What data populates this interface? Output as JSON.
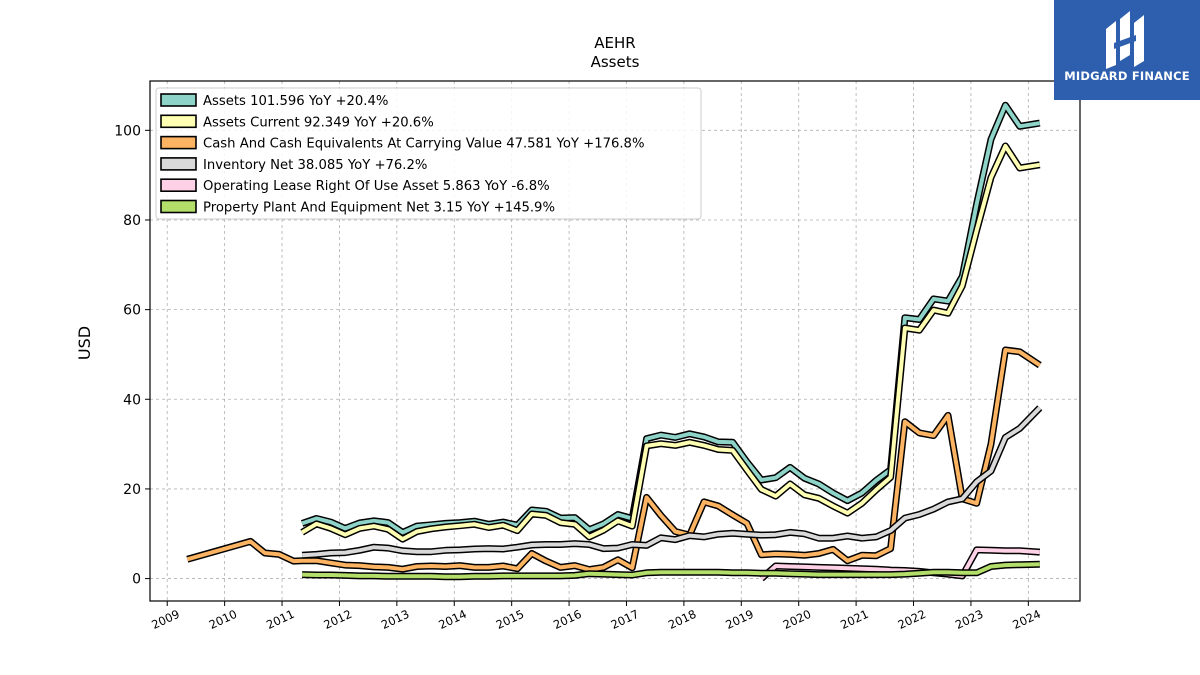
{
  "logo": {
    "text": "MIDGARD FINANCE"
  },
  "chart_data": {
    "type": "line",
    "title": "AEHR",
    "subtitle": "Assets",
    "ylabel": "USD",
    "xlabel": "",
    "ylim": [
      -5,
      111
    ],
    "xlim": [
      2008.7,
      2024.9
    ],
    "yticks": [
      0,
      20,
      40,
      60,
      80,
      100
    ],
    "xticks": [
      "2009",
      "2010",
      "2011",
      "2012",
      "2013",
      "2014",
      "2015",
      "2016",
      "2017",
      "2018",
      "2019",
      "2020",
      "2021",
      "2022",
      "2023",
      "2024"
    ],
    "grid": true,
    "legend_position": "top-left",
    "series": [
      {
        "name": "Assets  101.596 YoY +20.4%",
        "color": "#8dd3c7",
        "points": [
          [
            2011.35,
            12.3
          ],
          [
            2011.6,
            13.4
          ],
          [
            2011.85,
            12.6
          ],
          [
            2012.1,
            11.2
          ],
          [
            2012.35,
            12.4
          ],
          [
            2012.6,
            12.9
          ],
          [
            2012.85,
            12.5
          ],
          [
            2013.1,
            10.3
          ],
          [
            2013.35,
            11.7
          ],
          [
            2013.6,
            12.0
          ],
          [
            2013.85,
            12.3
          ],
          [
            2014.1,
            12.5
          ],
          [
            2014.35,
            12.8
          ],
          [
            2014.6,
            12.1
          ],
          [
            2014.85,
            12.6
          ],
          [
            2015.1,
            11.9
          ],
          [
            2015.35,
            15.3
          ],
          [
            2015.6,
            15.0
          ],
          [
            2015.85,
            13.5
          ],
          [
            2016.1,
            13.6
          ],
          [
            2016.35,
            10.9
          ],
          [
            2016.6,
            12.2
          ],
          [
            2016.85,
            14.3
          ],
          [
            2017.1,
            13.4
          ],
          [
            2017.35,
            31.2
          ],
          [
            2017.6,
            32.0
          ],
          [
            2017.85,
            31.5
          ],
          [
            2018.1,
            32.3
          ],
          [
            2018.35,
            31.6
          ],
          [
            2018.6,
            30.5
          ],
          [
            2018.85,
            30.4
          ],
          [
            2019.1,
            26.0
          ],
          [
            2019.35,
            22.0
          ],
          [
            2019.6,
            22.5
          ],
          [
            2019.85,
            24.8
          ],
          [
            2020.1,
            22.4
          ],
          [
            2020.35,
            21.1
          ],
          [
            2020.6,
            19.1
          ],
          [
            2020.85,
            17.4
          ],
          [
            2021.1,
            19.1
          ],
          [
            2021.35,
            21.9
          ],
          [
            2021.6,
            24.3
          ],
          [
            2021.85,
            58.2
          ],
          [
            2022.1,
            57.8
          ],
          [
            2022.35,
            62.4
          ],
          [
            2022.6,
            61.9
          ],
          [
            2022.85,
            67.4
          ],
          [
            2023.1,
            83.6
          ],
          [
            2023.35,
            98.0
          ],
          [
            2023.6,
            105.6
          ],
          [
            2023.85,
            100.9
          ],
          [
            2024.2,
            101.6
          ]
        ]
      },
      {
        "name": "Assets Current  92.349 YoY +20.6%",
        "color": "#ffffb3",
        "points": [
          [
            2011.35,
            10.3
          ],
          [
            2011.6,
            12.2
          ],
          [
            2011.85,
            11.2
          ],
          [
            2012.1,
            9.8
          ],
          [
            2012.35,
            11.2
          ],
          [
            2012.6,
            11.7
          ],
          [
            2012.85,
            11.0
          ],
          [
            2013.1,
            8.8
          ],
          [
            2013.35,
            10.5
          ],
          [
            2013.6,
            11.1
          ],
          [
            2013.85,
            11.5
          ],
          [
            2014.1,
            11.8
          ],
          [
            2014.35,
            12.1
          ],
          [
            2014.6,
            11.4
          ],
          [
            2014.85,
            11.9
          ],
          [
            2015.1,
            10.7
          ],
          [
            2015.35,
            14.4
          ],
          [
            2015.6,
            14.1
          ],
          [
            2015.85,
            12.5
          ],
          [
            2016.1,
            12.1
          ],
          [
            2016.35,
            9.3
          ],
          [
            2016.6,
            10.8
          ],
          [
            2016.85,
            12.9
          ],
          [
            2017.1,
            11.7
          ],
          [
            2017.35,
            29.6
          ],
          [
            2017.6,
            30.1
          ],
          [
            2017.85,
            29.7
          ],
          [
            2018.1,
            30.4
          ],
          [
            2018.35,
            29.7
          ],
          [
            2018.6,
            28.8
          ],
          [
            2018.85,
            28.6
          ],
          [
            2019.1,
            24.2
          ],
          [
            2019.35,
            19.9
          ],
          [
            2019.6,
            18.4
          ],
          [
            2019.85,
            21.1
          ],
          [
            2020.1,
            18.7
          ],
          [
            2020.35,
            17.9
          ],
          [
            2020.6,
            16.2
          ],
          [
            2020.85,
            14.6
          ],
          [
            2021.1,
            16.8
          ],
          [
            2021.35,
            19.8
          ],
          [
            2021.6,
            22.6
          ],
          [
            2021.85,
            55.9
          ],
          [
            2022.1,
            55.4
          ],
          [
            2022.35,
            59.9
          ],
          [
            2022.6,
            59.2
          ],
          [
            2022.85,
            65.3
          ],
          [
            2023.1,
            77.7
          ],
          [
            2023.35,
            89.5
          ],
          [
            2023.6,
            96.5
          ],
          [
            2023.85,
            91.6
          ],
          [
            2024.2,
            92.3
          ]
        ]
      },
      {
        "name": "Cash And Cash Equivalents At Carrying Value  47.581 YoY +176.8%",
        "color": "#fdb462",
        "points": [
          [
            2009.35,
            4.3
          ],
          [
            2010.45,
            8.3
          ],
          [
            2010.7,
            5.7
          ],
          [
            2010.95,
            5.4
          ],
          [
            2011.2,
            3.9
          ],
          [
            2011.35,
            4.0
          ],
          [
            2011.6,
            4.0
          ],
          [
            2011.85,
            3.5
          ],
          [
            2012.1,
            3.0
          ],
          [
            2012.35,
            2.9
          ],
          [
            2012.6,
            2.6
          ],
          [
            2012.85,
            2.5
          ],
          [
            2013.1,
            2.1
          ],
          [
            2013.35,
            2.7
          ],
          [
            2013.6,
            2.8
          ],
          [
            2013.85,
            2.7
          ],
          [
            2014.1,
            2.9
          ],
          [
            2014.35,
            2.5
          ],
          [
            2014.6,
            2.5
          ],
          [
            2014.85,
            2.8
          ],
          [
            2015.1,
            2.2
          ],
          [
            2015.35,
            5.6
          ],
          [
            2015.6,
            3.9
          ],
          [
            2015.85,
            2.5
          ],
          [
            2016.1,
            2.9
          ],
          [
            2016.35,
            2.0
          ],
          [
            2016.6,
            2.5
          ],
          [
            2016.85,
            4.2
          ],
          [
            2017.1,
            2.4
          ],
          [
            2017.35,
            18.1
          ],
          [
            2017.6,
            14.1
          ],
          [
            2017.85,
            10.5
          ],
          [
            2018.1,
            9.7
          ],
          [
            2018.35,
            17.1
          ],
          [
            2018.6,
            16.2
          ],
          [
            2018.85,
            14.2
          ],
          [
            2019.1,
            12.3
          ],
          [
            2019.35,
            5.3
          ],
          [
            2019.6,
            5.5
          ],
          [
            2019.85,
            5.4
          ],
          [
            2020.1,
            5.2
          ],
          [
            2020.35,
            5.6
          ],
          [
            2020.6,
            6.5
          ],
          [
            2020.85,
            4.0
          ],
          [
            2021.1,
            5.2
          ],
          [
            2021.35,
            5.1
          ],
          [
            2021.6,
            6.7
          ],
          [
            2021.85,
            35.0
          ],
          [
            2022.1,
            32.5
          ],
          [
            2022.35,
            31.9
          ],
          [
            2022.6,
            36.4
          ],
          [
            2022.85,
            17.8
          ],
          [
            2023.1,
            16.8
          ],
          [
            2023.35,
            30.0
          ],
          [
            2023.6,
            51.0
          ],
          [
            2023.85,
            50.6
          ],
          [
            2024.2,
            47.6
          ]
        ]
      },
      {
        "name": "Inventory Net  38.085 YoY +76.2%",
        "color": "#d9d9d9",
        "points": [
          [
            2011.35,
            5.2
          ],
          [
            2011.6,
            5.4
          ],
          [
            2011.85,
            5.7
          ],
          [
            2012.1,
            5.8
          ],
          [
            2012.35,
            6.3
          ],
          [
            2012.6,
            7.0
          ],
          [
            2012.85,
            6.8
          ],
          [
            2013.1,
            6.2
          ],
          [
            2013.35,
            6.0
          ],
          [
            2013.6,
            6.0
          ],
          [
            2013.85,
            6.3
          ],
          [
            2014.1,
            6.4
          ],
          [
            2014.35,
            6.6
          ],
          [
            2014.6,
            6.7
          ],
          [
            2014.85,
            6.6
          ],
          [
            2015.1,
            7.0
          ],
          [
            2015.35,
            7.5
          ],
          [
            2015.6,
            7.6
          ],
          [
            2015.85,
            7.6
          ],
          [
            2016.1,
            7.8
          ],
          [
            2016.35,
            7.6
          ],
          [
            2016.6,
            6.7
          ],
          [
            2016.85,
            6.8
          ],
          [
            2017.1,
            7.6
          ],
          [
            2017.35,
            7.4
          ],
          [
            2017.6,
            9.1
          ],
          [
            2017.85,
            8.7
          ],
          [
            2018.1,
            9.6
          ],
          [
            2018.35,
            9.3
          ],
          [
            2018.6,
            9.9
          ],
          [
            2018.85,
            10.1
          ],
          [
            2019.1,
            9.9
          ],
          [
            2019.35,
            9.7
          ],
          [
            2019.6,
            9.8
          ],
          [
            2019.85,
            10.3
          ],
          [
            2020.1,
            10.0
          ],
          [
            2020.35,
            9.0
          ],
          [
            2020.6,
            9.0
          ],
          [
            2020.85,
            9.5
          ],
          [
            2021.1,
            9.0
          ],
          [
            2021.35,
            9.3
          ],
          [
            2021.6,
            10.7
          ],
          [
            2021.85,
            13.5
          ],
          [
            2022.1,
            14.3
          ],
          [
            2022.35,
            15.5
          ],
          [
            2022.6,
            17.1
          ],
          [
            2022.85,
            17.8
          ],
          [
            2023.1,
            21.6
          ],
          [
            2023.35,
            24.0
          ],
          [
            2023.6,
            31.5
          ],
          [
            2023.85,
            33.5
          ],
          [
            2024.2,
            38.1
          ]
        ]
      },
      {
        "name": "Operating Lease Right Of Use Asset  5.863 YoY -6.8%",
        "color": "#ffd1e6",
        "points": [
          [
            2019.35,
            0.0
          ],
          [
            2019.6,
            2.8
          ],
          [
            2019.85,
            2.7
          ],
          [
            2020.1,
            2.6
          ],
          [
            2020.35,
            2.5
          ],
          [
            2020.6,
            2.4
          ],
          [
            2020.85,
            2.3
          ],
          [
            2021.1,
            2.2
          ],
          [
            2021.35,
            2.1
          ],
          [
            2021.6,
            1.9
          ],
          [
            2021.85,
            1.8
          ],
          [
            2022.1,
            1.6
          ],
          [
            2022.35,
            1.3
          ],
          [
            2022.6,
            1.0
          ],
          [
            2022.85,
            0.6
          ],
          [
            2023.1,
            6.4
          ],
          [
            2023.35,
            6.3
          ],
          [
            2023.6,
            6.2
          ],
          [
            2023.85,
            6.2
          ],
          [
            2024.2,
            5.9
          ]
        ]
      },
      {
        "name": "Property Plant And Equipment Net  3.15 YoY +145.9%",
        "color": "#b3de69",
        "points": [
          [
            2011.35,
            0.9
          ],
          [
            2011.6,
            0.8
          ],
          [
            2011.85,
            0.8
          ],
          [
            2012.1,
            0.7
          ],
          [
            2012.35,
            0.6
          ],
          [
            2012.6,
            0.6
          ],
          [
            2012.85,
            0.5
          ],
          [
            2013.1,
            0.5
          ],
          [
            2013.35,
            0.5
          ],
          [
            2013.6,
            0.5
          ],
          [
            2013.85,
            0.4
          ],
          [
            2014.1,
            0.4
          ],
          [
            2014.35,
            0.5
          ],
          [
            2014.6,
            0.5
          ],
          [
            2014.85,
            0.6
          ],
          [
            2015.1,
            0.6
          ],
          [
            2015.35,
            0.6
          ],
          [
            2015.6,
            0.6
          ],
          [
            2015.85,
            0.6
          ],
          [
            2016.1,
            0.7
          ],
          [
            2016.35,
            1.1
          ],
          [
            2016.6,
            1.0
          ],
          [
            2016.85,
            0.9
          ],
          [
            2017.1,
            0.8
          ],
          [
            2017.35,
            1.3
          ],
          [
            2017.6,
            1.4
          ],
          [
            2017.85,
            1.4
          ],
          [
            2018.1,
            1.4
          ],
          [
            2018.35,
            1.4
          ],
          [
            2018.6,
            1.4
          ],
          [
            2018.85,
            1.3
          ],
          [
            2019.1,
            1.3
          ],
          [
            2019.35,
            1.2
          ],
          [
            2019.6,
            1.2
          ],
          [
            2019.85,
            1.1
          ],
          [
            2020.1,
            1.0
          ],
          [
            2020.35,
            0.9
          ],
          [
            2020.6,
            0.9
          ],
          [
            2020.85,
            0.9
          ],
          [
            2021.1,
            0.9
          ],
          [
            2021.35,
            0.9
          ],
          [
            2021.6,
            0.9
          ],
          [
            2021.85,
            1.0
          ],
          [
            2022.1,
            1.2
          ],
          [
            2022.35,
            1.4
          ],
          [
            2022.6,
            1.4
          ],
          [
            2022.85,
            1.3
          ],
          [
            2023.1,
            1.3
          ],
          [
            2023.35,
            2.7
          ],
          [
            2023.6,
            3.0
          ],
          [
            2023.85,
            3.1
          ],
          [
            2024.2,
            3.2
          ]
        ]
      }
    ]
  }
}
